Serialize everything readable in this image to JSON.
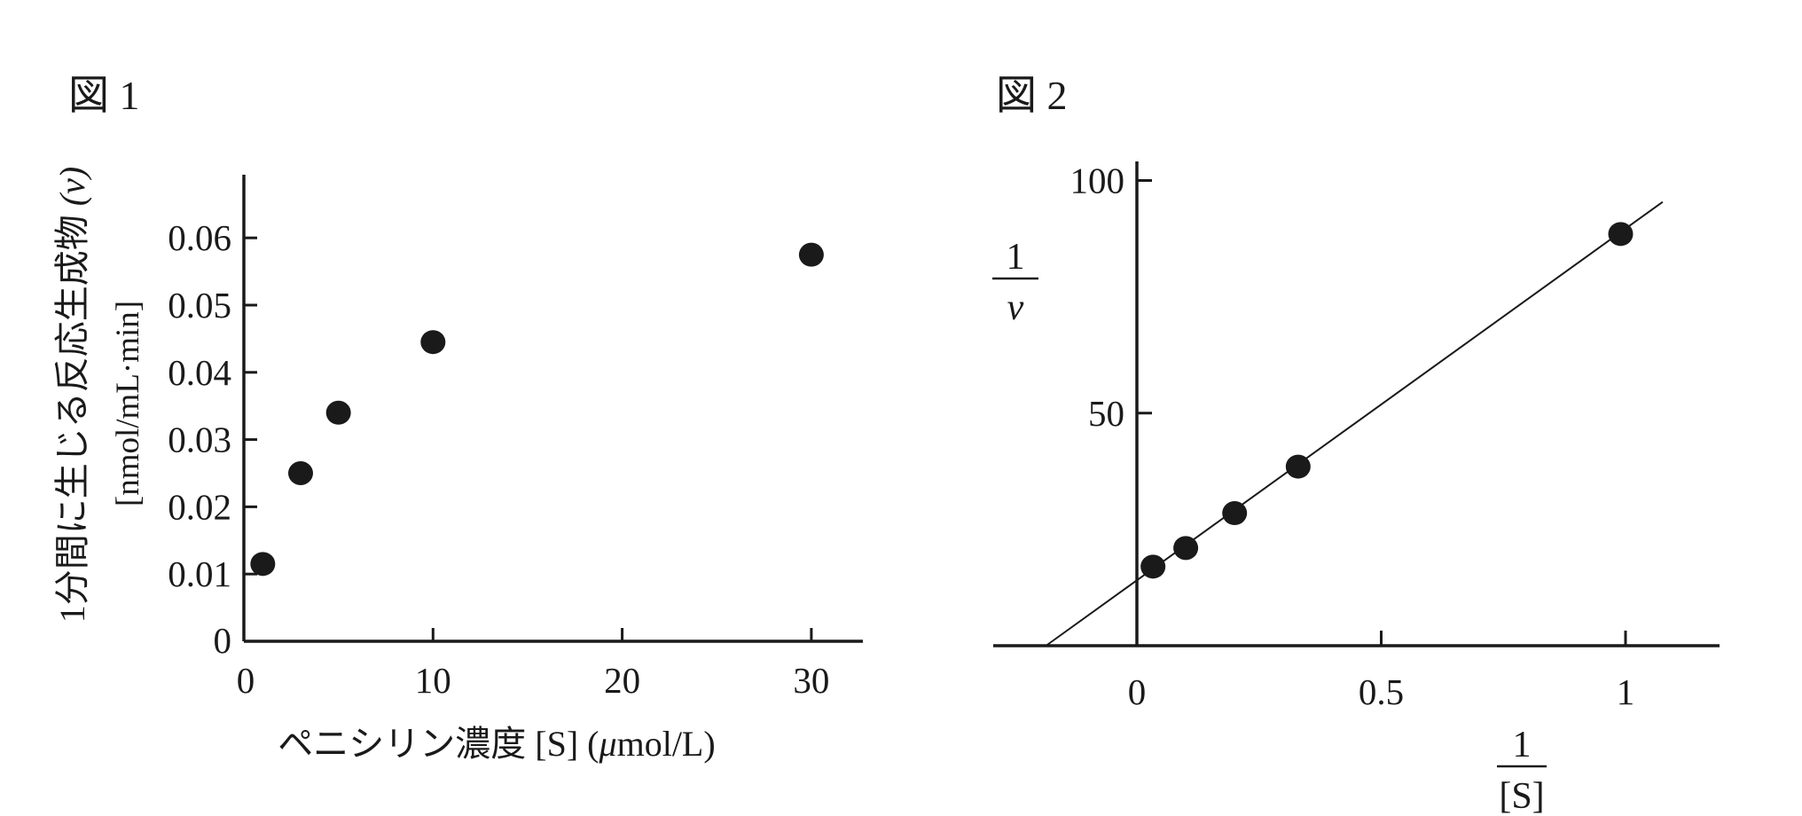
{
  "page": {
    "background": "#ffffff"
  },
  "colors": {
    "ink": "#1a1a1a"
  },
  "chart_data": [
    {
      "type": "scatter",
      "title": "図 1",
      "xlabel": "ペニシリン濃度 [S] (μmol/L)",
      "xlabel_parts": {
        "pre": "ペニシリン濃度 [S] (",
        "mu": "μ",
        "post": "mol/L)"
      },
      "ylabel": "1分間に生じる反応生成物 (v) [nmol/mL·min]",
      "ylabel_main": "1分間に生じる反応生成物",
      "ylabel_var": "(v)",
      "ylabel_units": "[nmol/mL·min]",
      "x": [
        1,
        3,
        5,
        10,
        30
      ],
      "y": [
        0.0115,
        0.025,
        0.034,
        0.0445,
        0.0575
      ],
      "xtick_labels": [
        "10",
        "20",
        "30"
      ],
      "ytick_labels": [
        "0.01",
        "0.02",
        "0.03",
        "0.04",
        "0.05",
        "0.06"
      ],
      "origin_label_x": "0",
      "origin_label_y": "0",
      "xlim": [
        0,
        32.7
      ],
      "ylim": [
        0,
        0.0695
      ],
      "grid": false,
      "legend": false,
      "marker": "filled-circle"
    },
    {
      "type": "scatter",
      "title": "図 2",
      "xlabel_frac": {
        "num": "1",
        "den": "[S]"
      },
      "ylabel_frac": {
        "num": "1",
        "den": "v"
      },
      "x": [
        0.033,
        0.1,
        0.2,
        0.33,
        0.99
      ],
      "y": [
        17,
        21,
        28.5,
        38.5,
        88.5
      ],
      "fit_line": {
        "x_start": -0.186,
        "y_start": 0,
        "x_end": 1.076,
        "y_end": 95.4
      },
      "xtick_labels": [
        "0.5",
        "1"
      ],
      "ytick_labels": [
        "50",
        "100"
      ],
      "origin_label_x": "0",
      "xlim": [
        -0.294,
        1.192
      ],
      "ylim": [
        0,
        104
      ],
      "grid": false,
      "legend": false,
      "marker": "filled-circle"
    }
  ]
}
